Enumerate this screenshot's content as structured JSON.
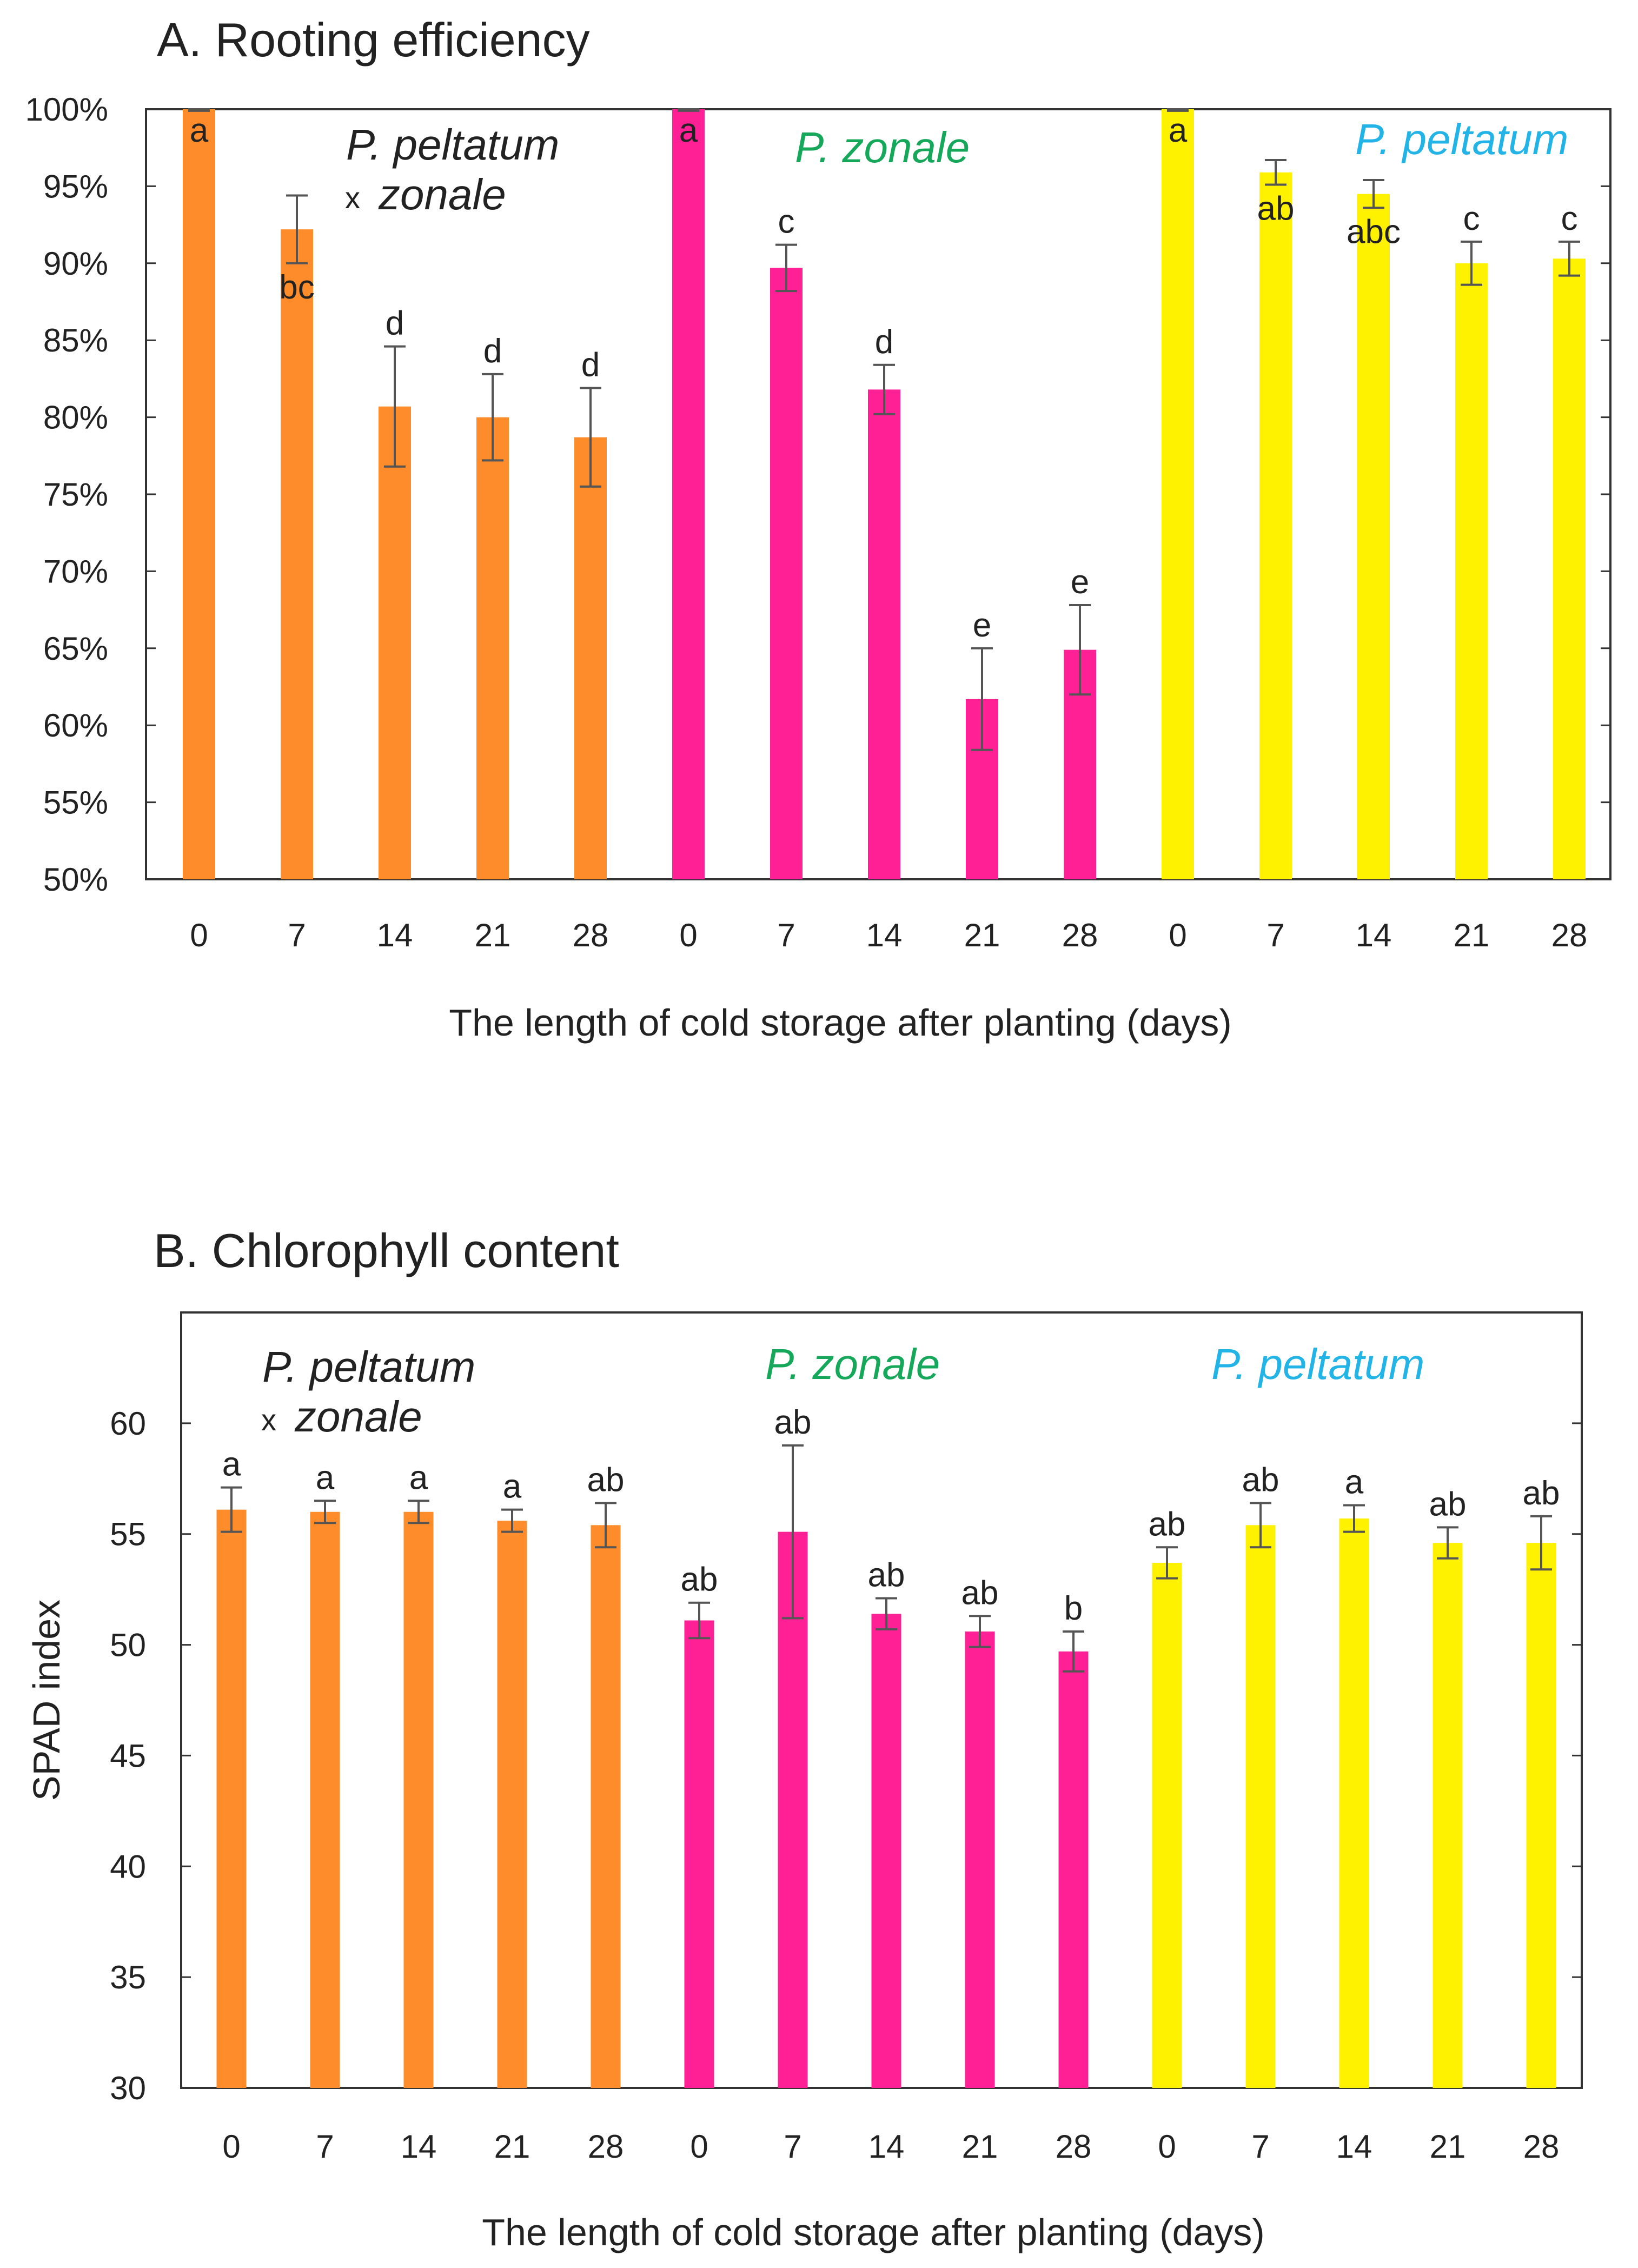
{
  "colors": {
    "orange": "#FF8C2A",
    "pink": "#FF2096",
    "yellow": "#FFF200",
    "green_text": "#16A85A",
    "cyan_text": "#22B4E6",
    "dark_text": "#222222",
    "error_bar": "#555555"
  },
  "chart_data": [
    {
      "type": "bar",
      "title": "A. Rooting efficiency",
      "xlabel": "The length of cold storage after planting (days)",
      "ylabel": "",
      "ylim": [
        50,
        100
      ],
      "yticks": [
        "50%",
        "55%",
        "60%",
        "65%",
        "70%",
        "75%",
        "80%",
        "85%",
        "90%",
        "95%",
        "100%"
      ],
      "categories": [
        "0",
        "7",
        "14",
        "21",
        "28",
        "0",
        "7",
        "14",
        "21",
        "28",
        "0",
        "7",
        "14",
        "21",
        "28"
      ],
      "groups": [
        {
          "line1": "P. peltatum",
          "cross": "x",
          "line2": "zonale",
          "color_key": "dark_text"
        },
        {
          "line1": "P. zonale",
          "color_key": "green_text"
        },
        {
          "line1": "P. peltatum",
          "color_key": "cyan_text"
        }
      ],
      "series": [
        {
          "name": "P. peltatum x zonale",
          "color_key": "orange",
          "x": [
            "0",
            "7",
            "14",
            "21",
            "28"
          ],
          "values": [
            100,
            92.2,
            80.7,
            80.0,
            78.7
          ],
          "errors": [
            0.1,
            2.2,
            3.9,
            2.8,
            3.2
          ],
          "letters": [
            "a",
            "bc",
            "d",
            "d",
            "d"
          ]
        },
        {
          "name": "P. zonale",
          "color_key": "pink",
          "x": [
            "0",
            "7",
            "14",
            "21",
            "28"
          ],
          "values": [
            100,
            89.7,
            81.8,
            61.7,
            64.9
          ],
          "errors": [
            0.1,
            1.5,
            1.6,
            3.3,
            2.9
          ],
          "letters": [
            "a",
            "c",
            "d",
            "e",
            "e"
          ]
        },
        {
          "name": "P. peltatum",
          "color_key": "yellow",
          "x": [
            "0",
            "7",
            "14",
            "21",
            "28"
          ],
          "values": [
            100,
            95.9,
            94.5,
            90.0,
            90.3
          ],
          "errors": [
            0.1,
            0.8,
            0.9,
            1.4,
            1.1
          ],
          "letters": [
            "a",
            "ab",
            "abc",
            "c",
            "c"
          ]
        }
      ]
    },
    {
      "type": "bar",
      "title": "B. Chlorophyll content",
      "xlabel": "The length of cold storage after planting (days)",
      "ylabel": "SPAD index",
      "ylim": [
        30,
        65
      ],
      "yticks": [
        "30",
        "35",
        "40",
        "45",
        "50",
        "55",
        "60"
      ],
      "categories": [
        "0",
        "7",
        "14",
        "21",
        "28",
        "0",
        "7",
        "14",
        "21",
        "28",
        "0",
        "7",
        "14",
        "21",
        "28"
      ],
      "groups": [
        {
          "line1": "P. peltatum",
          "cross": "x",
          "line2": "zonale",
          "color_key": "dark_text"
        },
        {
          "line1": "P. zonale",
          "color_key": "green_text"
        },
        {
          "line1": "P. peltatum",
          "color_key": "cyan_text"
        }
      ],
      "series": [
        {
          "name": "P. peltatum x zonale",
          "color_key": "orange",
          "x": [
            "0",
            "7",
            "14",
            "21",
            "28"
          ],
          "values": [
            56.1,
            56.0,
            56.0,
            55.6,
            55.4
          ],
          "errors": [
            1.0,
            0.5,
            0.5,
            0.5,
            1.0
          ],
          "letters": [
            "a",
            "a",
            "a",
            "a",
            "ab"
          ]
        },
        {
          "name": "P. zonale",
          "color_key": "pink",
          "x": [
            "0",
            "7",
            "14",
            "21",
            "28"
          ],
          "values": [
            51.1,
            55.1,
            51.4,
            50.6,
            49.7
          ],
          "errors": [
            0.8,
            3.9,
            0.7,
            0.7,
            0.9
          ],
          "letters": [
            "ab",
            "ab",
            "ab",
            "ab",
            "b"
          ]
        },
        {
          "name": "P. peltatum",
          "color_key": "yellow",
          "x": [
            "0",
            "7",
            "14",
            "21",
            "28"
          ],
          "values": [
            53.7,
            55.4,
            55.7,
            54.6,
            54.6
          ],
          "errors": [
            0.7,
            1.0,
            0.6,
            0.7,
            1.2
          ],
          "letters": [
            "ab",
            "ab",
            "a",
            "ab",
            "ab"
          ]
        }
      ]
    }
  ]
}
